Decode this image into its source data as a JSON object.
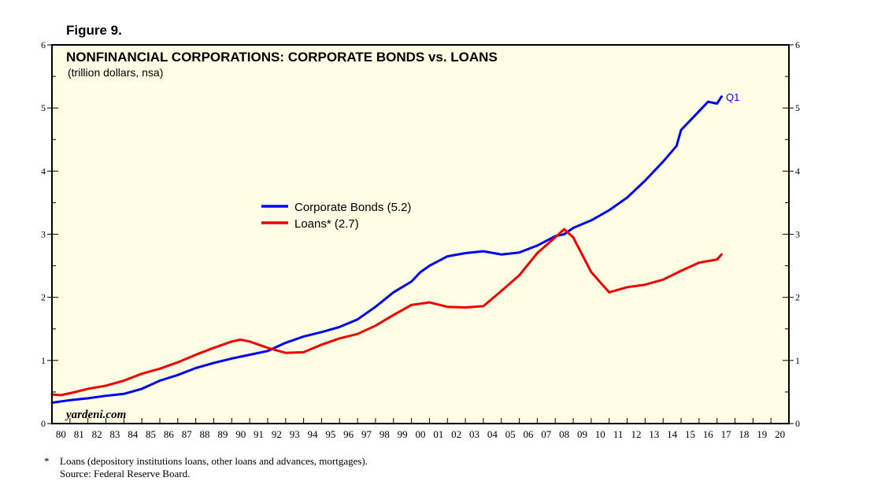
{
  "figure_label": "Figure 9.",
  "chart_data": {
    "type": "line",
    "title": "NONFINANCIAL CORPORATIONS: CORPORATE BONDS vs. LOANS",
    "subtitle": "(trillion dollars, nsa)",
    "watermark": "yardeni.com",
    "ylim": [
      0,
      6
    ],
    "yticks": [
      "0",
      "1",
      "2",
      "3",
      "4",
      "5",
      "6"
    ],
    "xlim": [
      1980,
      2021
    ],
    "xtick_labels": [
      "80",
      "81",
      "82",
      "83",
      "84",
      "85",
      "86",
      "87",
      "88",
      "89",
      "90",
      "91",
      "92",
      "93",
      "94",
      "95",
      "96",
      "97",
      "98",
      "99",
      "00",
      "01",
      "02",
      "03",
      "04",
      "05",
      "06",
      "07",
      "08",
      "09",
      "10",
      "11",
      "12",
      "13",
      "14",
      "15",
      "16",
      "17",
      "18",
      "19",
      "20"
    ],
    "end_annotation": "Q1",
    "colors": {
      "plot_bg": "#fefee4",
      "bonds": "#0000ee",
      "loans": "#ee0000"
    },
    "series": [
      {
        "name": "Corporate Bonds (5.2)",
        "color": "#0000ee",
        "x": [
          1980,
          1981,
          1982,
          1983,
          1984,
          1985,
          1986,
          1987,
          1988,
          1989,
          1990,
          1991,
          1992,
          1993,
          1994,
          1995,
          1996,
          1997,
          1998,
          1999,
          2000,
          2000.5,
          2001,
          2002,
          2003,
          2004,
          2005,
          2006,
          2007,
          2008,
          2008.5,
          2009,
          2010,
          2011,
          2012,
          2013,
          2014,
          2014.75,
          2015,
          2016,
          2016.5,
          2017,
          2017.25
        ],
        "values": [
          0.33,
          0.37,
          0.4,
          0.44,
          0.47,
          0.55,
          0.68,
          0.77,
          0.88,
          0.96,
          1.03,
          1.09,
          1.15,
          1.28,
          1.38,
          1.45,
          1.53,
          1.65,
          1.85,
          2.08,
          2.25,
          2.4,
          2.5,
          2.65,
          2.7,
          2.73,
          2.68,
          2.71,
          2.82,
          2.97,
          3.0,
          3.1,
          3.22,
          3.38,
          3.58,
          3.85,
          4.15,
          4.4,
          4.65,
          4.95,
          5.1,
          5.07,
          5.18
        ]
      },
      {
        "name": "Loans* (2.7)",
        "color": "#ee0000",
        "x": [
          1980,
          1980.5,
          1981,
          1982,
          1983,
          1984,
          1985,
          1986,
          1987,
          1988,
          1989,
          1990,
          1990.5,
          1991,
          1992,
          1993,
          1994,
          1995,
          1996,
          1997,
          1998,
          1999,
          2000,
          2001,
          2002,
          2003,
          2004,
          2005,
          2006,
          2007,
          2008,
          2008.5,
          2009,
          2010,
          2011,
          2012,
          2013,
          2014,
          2015,
          2016,
          2017,
          2017.25
        ],
        "values": [
          0.46,
          0.45,
          0.48,
          0.55,
          0.6,
          0.68,
          0.79,
          0.87,
          0.97,
          1.09,
          1.2,
          1.3,
          1.33,
          1.3,
          1.2,
          1.12,
          1.13,
          1.25,
          1.35,
          1.42,
          1.55,
          1.72,
          1.88,
          1.92,
          1.85,
          1.84,
          1.86,
          2.1,
          2.35,
          2.7,
          2.95,
          3.08,
          2.95,
          2.4,
          2.08,
          2.16,
          2.2,
          2.28,
          2.42,
          2.55,
          2.6,
          2.68
        ]
      }
    ]
  },
  "legend": [
    {
      "label": "Corporate Bonds (5.2)",
      "color": "#0000ee"
    },
    {
      "label": "Loans* (2.7)",
      "color": "#ee0000"
    }
  ],
  "footnote": {
    "marker": "*",
    "text": "Loans (depository institutions loans, other loans and advances, mortgages).",
    "source": "Source: Federal Reserve Board."
  }
}
